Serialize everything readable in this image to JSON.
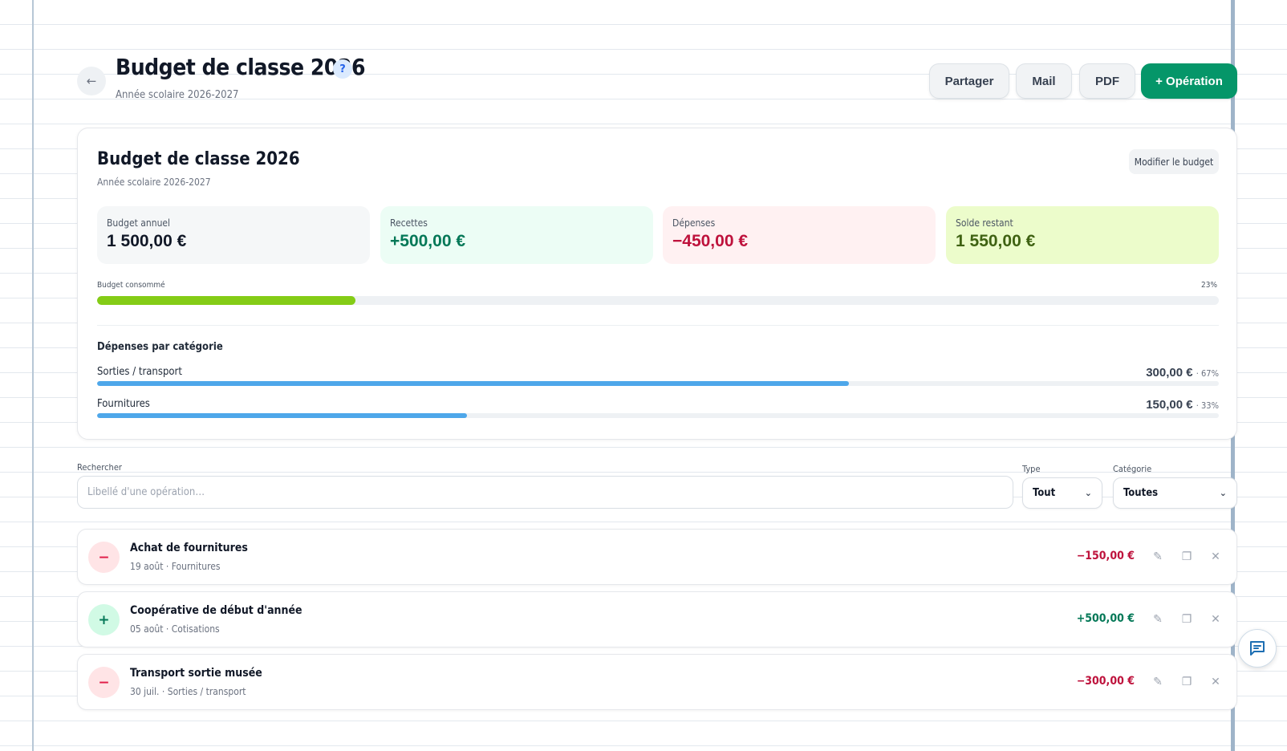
{
  "header": {
    "title": "Budget de classe 2026",
    "subtitle": "Année scolaire 2026-2027",
    "help": "?",
    "back_icon": "arrow-left-icon",
    "buttons": {
      "share": "Partager",
      "mail": "Mail",
      "pdf": "PDF",
      "operation": "+ Opération"
    }
  },
  "summary": {
    "title": "Budget de classe 2026",
    "subtitle": "Année scolaire 2026-2027",
    "modify_label": "Modifier le budget",
    "stats": [
      {
        "label": "Budget annuel",
        "value": "1 500,00 €"
      },
      {
        "label": "Recettes",
        "value": "+500,00 €"
      },
      {
        "label": "Dépenses",
        "value": "−450,00 €"
      },
      {
        "label": "Solde restant",
        "value": "1 550,00 €"
      }
    ],
    "consumed": {
      "label": "Budget consommé",
      "percent_text": "23%",
      "fraction": 0.23
    },
    "categories_title": "Dépenses par catégorie",
    "categories": [
      {
        "name": "Sorties / transport",
        "amount": "300,00 €",
        "pct": "· 67%",
        "fraction": 0.67
      },
      {
        "name": "Fournitures",
        "amount": "150,00 €",
        "pct": "· 33%",
        "fraction": 0.33
      }
    ]
  },
  "filters": {
    "search_label": "Rechercher",
    "search_placeholder": "Libellé d'une opération…",
    "type_label": "Type",
    "type_value": "Tout",
    "category_label": "Catégorie",
    "category_value": "Toutes"
  },
  "operations": [
    {
      "sign": "−",
      "title": "Achat de fournitures",
      "meta": "19 août · Fournitures",
      "amount": "−150,00 €",
      "kind": "expense"
    },
    {
      "sign": "+",
      "title": "Coopérative de début d'année",
      "meta": "05 août · Cotisations",
      "amount": "+500,00 €",
      "kind": "income"
    },
    {
      "sign": "−",
      "title": "Transport sortie musée",
      "meta": "30 juil. · Sorties / transport",
      "amount": "−300,00 €",
      "kind": "expense"
    }
  ],
  "icons": {
    "edit": "pencil-icon",
    "copy": "copy-icon",
    "delete": "close-icon",
    "chat": "chat-icon",
    "chevron": "chevron-down-icon"
  },
  "colors": {
    "accent": "#059669",
    "income": "#047857",
    "expense": "#be123c",
    "progress": "#84cc16",
    "category_bar": "#4ea7ea"
  }
}
